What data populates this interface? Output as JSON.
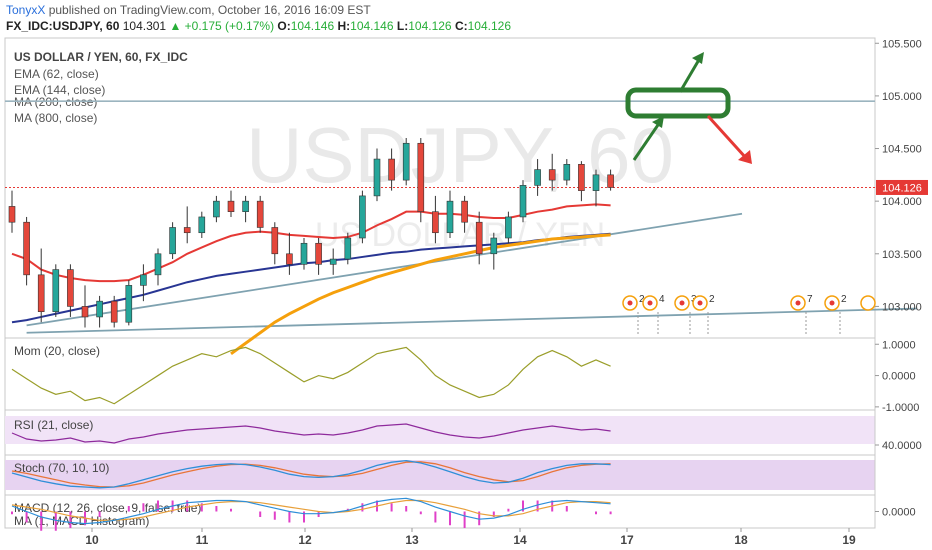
{
  "header": {
    "author": "TonyxX",
    "published": " published on TradingView.com, October 16, 2016 16:09 EST",
    "symbol": "FX_IDC:USDJPY, 60",
    "last": "104.301",
    "change": "▲ +0.175 (+0.17%)",
    "o_label": "O:",
    "o_value": "104.146",
    "h_label": "H:",
    "h_value": "104.146",
    "l_label": "L:",
    "l_value": "104.126",
    "c_label": "C:",
    "c_value": "104.126"
  },
  "main_pane": {
    "title": "US DOLLAR / YEN, 60, FX_IDC",
    "studies": [
      "EMA (62, close)",
      "EMA (144, close)",
      "MA (200, close)",
      "MA (800, close)"
    ],
    "watermark_symbol": "USDJPY, 60",
    "watermark_name": "US DOLLAR / YEN",
    "last_price_label": "104.126"
  },
  "indicators": {
    "mom_title": "Mom (20, close)",
    "rsi_title": "RSI (21, close)",
    "stoch_title": "Stoch (70, 10, 10)",
    "macd_title": "MACD (12, 26, close, 9, false, true)",
    "ma_title": "MA (1, MACD Histogram)"
  },
  "events": [
    "2",
    "4",
    "3",
    "2",
    "7",
    "2"
  ],
  "colors": {
    "candle_up": "#26a69a",
    "candle_down": "#e4473b",
    "ema62": "#e53935",
    "ema144": "#283593",
    "ma200": "#f5a00c",
    "trendline": "#7fa2b0",
    "resistance": "#9bb4bf",
    "arrow_up": "#2e7d32",
    "arrow_down": "#e53935",
    "mom": "#9a9e2a",
    "rsi": "#8e2a9c",
    "stoch_k": "#2f8fd8",
    "stoch_d": "#e8753a",
    "macd_line": "#2f8fd8",
    "signal_line": "#e8a03a",
    "histogram": "#e040c8"
  },
  "chart_data": {
    "type": "line",
    "x_tick_labels": [
      "10",
      "11",
      "12",
      "13",
      "14",
      "17",
      "18",
      "19"
    ],
    "price_axis": {
      "ticks": [
        "105.500",
        "105.000",
        "104.500",
        "104.000",
        "103.500",
        "103.000"
      ],
      "range": [
        102.7,
        105.55
      ]
    },
    "candles": [
      {
        "o": 103.95,
        "h": 104.1,
        "l": 103.7,
        "c": 103.8
      },
      {
        "o": 103.8,
        "h": 103.85,
        "l": 103.2,
        "c": 103.3
      },
      {
        "o": 103.3,
        "h": 103.55,
        "l": 102.85,
        "c": 102.95
      },
      {
        "o": 102.95,
        "h": 103.4,
        "l": 102.9,
        "c": 103.35
      },
      {
        "o": 103.35,
        "h": 103.4,
        "l": 102.9,
        "c": 103.0
      },
      {
        "o": 103.0,
        "h": 103.2,
        "l": 102.8,
        "c": 102.9
      },
      {
        "o": 102.9,
        "h": 103.1,
        "l": 102.8,
        "c": 103.05
      },
      {
        "o": 103.05,
        "h": 103.1,
        "l": 102.8,
        "c": 102.85
      },
      {
        "o": 102.85,
        "h": 103.25,
        "l": 102.82,
        "c": 103.2
      },
      {
        "o": 103.2,
        "h": 103.4,
        "l": 103.05,
        "c": 103.3
      },
      {
        "o": 103.3,
        "h": 103.55,
        "l": 103.2,
        "c": 103.5
      },
      {
        "o": 103.5,
        "h": 103.8,
        "l": 103.45,
        "c": 103.75
      },
      {
        "o": 103.75,
        "h": 103.95,
        "l": 103.6,
        "c": 103.7
      },
      {
        "o": 103.7,
        "h": 103.9,
        "l": 103.65,
        "c": 103.85
      },
      {
        "o": 103.85,
        "h": 104.05,
        "l": 103.8,
        "c": 104.0
      },
      {
        "o": 104.0,
        "h": 104.1,
        "l": 103.85,
        "c": 103.9
      },
      {
        "o": 103.9,
        "h": 104.05,
        "l": 103.8,
        "c": 104.0
      },
      {
        "o": 104.0,
        "h": 104.05,
        "l": 103.7,
        "c": 103.75
      },
      {
        "o": 103.75,
        "h": 103.8,
        "l": 103.4,
        "c": 103.5
      },
      {
        "o": 103.5,
        "h": 103.7,
        "l": 103.3,
        "c": 103.4
      },
      {
        "o": 103.4,
        "h": 103.65,
        "l": 103.35,
        "c": 103.6
      },
      {
        "o": 103.6,
        "h": 103.65,
        "l": 103.3,
        "c": 103.4
      },
      {
        "o": 103.4,
        "h": 103.55,
        "l": 103.3,
        "c": 103.45
      },
      {
        "o": 103.45,
        "h": 103.7,
        "l": 103.4,
        "c": 103.65
      },
      {
        "o": 103.65,
        "h": 104.1,
        "l": 103.6,
        "c": 104.05
      },
      {
        "o": 104.05,
        "h": 104.5,
        "l": 104.0,
        "c": 104.4
      },
      {
        "o": 104.4,
        "h": 104.5,
        "l": 104.1,
        "c": 104.2
      },
      {
        "o": 104.2,
        "h": 104.6,
        "l": 104.15,
        "c": 104.55
      },
      {
        "o": 104.55,
        "h": 104.6,
        "l": 103.8,
        "c": 103.9
      },
      {
        "o": 103.9,
        "h": 104.05,
        "l": 103.6,
        "c": 103.7
      },
      {
        "o": 103.7,
        "h": 104.1,
        "l": 103.65,
        "c": 104.0
      },
      {
        "o": 104.0,
        "h": 104.05,
        "l": 103.7,
        "c": 103.8
      },
      {
        "o": 103.8,
        "h": 103.9,
        "l": 103.4,
        "c": 103.5
      },
      {
        "o": 103.5,
        "h": 103.7,
        "l": 103.35,
        "c": 103.65
      },
      {
        "o": 103.65,
        "h": 103.9,
        "l": 103.6,
        "c": 103.85
      },
      {
        "o": 103.85,
        "h": 104.2,
        "l": 103.8,
        "c": 104.15
      },
      {
        "o": 104.15,
        "h": 104.4,
        "l": 104.05,
        "c": 104.3
      },
      {
        "o": 104.3,
        "h": 104.45,
        "l": 104.1,
        "c": 104.2
      },
      {
        "o": 104.2,
        "h": 104.4,
        "l": 104.15,
        "c": 104.35
      },
      {
        "o": 104.35,
        "h": 104.38,
        "l": 104.0,
        "c": 104.1
      },
      {
        "o": 104.1,
        "h": 104.3,
        "l": 103.95,
        "c": 104.25
      },
      {
        "o": 104.25,
        "h": 104.3,
        "l": 104.1,
        "c": 104.13
      }
    ],
    "ema62": [
      103.5,
      103.45,
      103.35,
      103.3,
      103.27,
      103.25,
      103.24,
      103.24,
      103.25,
      103.3,
      103.36,
      103.42,
      103.5,
      103.56,
      103.62,
      103.67,
      103.7,
      103.71,
      103.7,
      103.68,
      103.67,
      103.66,
      103.65,
      103.66,
      103.7,
      103.77,
      103.83,
      103.9,
      103.9,
      103.88,
      103.88,
      103.87,
      103.85,
      103.84,
      103.84,
      103.87,
      103.9,
      103.92,
      103.95,
      103.96,
      103.97,
      103.96
    ],
    "ema144": [
      102.85,
      102.87,
      102.9,
      102.93,
      102.96,
      102.99,
      103.02,
      103.05,
      103.08,
      103.11,
      103.15,
      103.19,
      103.23,
      103.26,
      103.29,
      103.31,
      103.33,
      103.35,
      103.37,
      103.39,
      103.41,
      103.42,
      103.44,
      103.45,
      103.47,
      103.49,
      103.51,
      103.52,
      103.54,
      103.55,
      103.56,
      103.57,
      103.58,
      103.59,
      103.6,
      103.61,
      103.63,
      103.64,
      103.66,
      103.67,
      103.68,
      103.69
    ],
    "ma200_x": [
      15,
      41
    ],
    "ma200": [
      102.55,
      102.65,
      102.75,
      102.85,
      102.93,
      103.0,
      103.07,
      103.13,
      103.18,
      103.23,
      103.28,
      103.32,
      103.36,
      103.4,
      103.44,
      103.47,
      103.5,
      103.53,
      103.56,
      103.58,
      103.6,
      103.62,
      103.64,
      103.65,
      103.66,
      103.67,
      103.68
    ],
    "trendlines": [
      {
        "x": [
          1,
          50
        ],
        "y": [
          102.82,
          103.88
        ]
      },
      {
        "x": [
          1,
          62
        ],
        "y": [
          102.75,
          102.98
        ]
      }
    ],
    "resistance_level": 104.95,
    "current_price": 104.13,
    "mom": [
      0.2,
      -0.1,
      -0.4,
      -0.6,
      -0.5,
      -0.8,
      -0.7,
      -0.9,
      -0.6,
      -0.3,
      0.0,
      0.3,
      0.5,
      0.7,
      0.6,
      0.8,
      0.9,
      0.7,
      0.4,
      0.1,
      -0.2,
      0.0,
      -0.1,
      0.1,
      0.4,
      0.7,
      0.8,
      0.9,
      0.5,
      0.0,
      -0.3,
      -0.5,
      -0.7,
      -0.6,
      -0.3,
      0.2,
      0.6,
      0.8,
      0.6,
      0.3,
      0.5,
      0.3
    ],
    "mom_axis": {
      "ticks": [
        "1.0000",
        "0.0000",
        "-1.0000"
      ],
      "range": [
        -1.1,
        1.2
      ]
    },
    "rsi": [
      52,
      46,
      44,
      45,
      47,
      43,
      44,
      42,
      46,
      48,
      51,
      53,
      55,
      56,
      57,
      58,
      59,
      57,
      54,
      52,
      50,
      51,
      50,
      52,
      55,
      59,
      60,
      61,
      57,
      53,
      50,
      48,
      47,
      49,
      52,
      55,
      57,
      59,
      57,
      55,
      56,
      54
    ],
    "rsi_axis": {
      "ticks": [
        "40.0000"
      ],
      "range": [
        30,
        75
      ]
    },
    "stoch_k": [
      55,
      45,
      35,
      28,
      22,
      20,
      18,
      20,
      28,
      38,
      48,
      58,
      66,
      72,
      76,
      78,
      76,
      70,
      62,
      52,
      46,
      44,
      46,
      52,
      62,
      74,
      82,
      86,
      80,
      70,
      58,
      46,
      36,
      30,
      32,
      42,
      56,
      66,
      74,
      78,
      78,
      76
    ],
    "stoch_d": [
      60,
      54,
      46,
      38,
      30,
      25,
      21,
      20,
      23,
      30,
      40,
      50,
      58,
      66,
      72,
      76,
      77,
      74,
      68,
      60,
      52,
      48,
      46,
      48,
      54,
      64,
      74,
      82,
      83,
      78,
      68,
      56,
      46,
      38,
      33,
      36,
      46,
      58,
      68,
      74,
      77,
      78
    ],
    "macd": [
      0.05,
      0.0,
      -0.05,
      -0.08,
      -0.1,
      -0.11,
      -0.1,
      -0.08,
      -0.05,
      -0.02,
      0.02,
      0.05,
      0.08,
      0.09,
      0.1,
      0.1,
      0.09,
      0.06,
      0.03,
      0.0,
      -0.02,
      -0.02,
      -0.01,
      0.01,
      0.05,
      0.09,
      0.11,
      0.12,
      0.09,
      0.04,
      0.0,
      -0.04,
      -0.07,
      -0.06,
      -0.03,
      0.02,
      0.06,
      0.09,
      0.1,
      0.09,
      0.08,
      0.07
    ],
    "signal": [
      0.06,
      0.04,
      0.02,
      -0.01,
      -0.04,
      -0.06,
      -0.08,
      -0.08,
      -0.07,
      -0.05,
      -0.02,
      0.01,
      0.04,
      0.06,
      0.08,
      0.09,
      0.09,
      0.08,
      0.06,
      0.04,
      0.02,
      0.0,
      -0.01,
      0.0,
      0.02,
      0.05,
      0.08,
      0.1,
      0.1,
      0.08,
      0.05,
      0.02,
      -0.02,
      -0.04,
      -0.04,
      -0.02,
      0.02,
      0.05,
      0.08,
      0.09,
      0.09,
      0.08
    ],
    "macd_axis": {
      "ticks": [
        "0.0000"
      ],
      "range": [
        -0.15,
        0.15
      ]
    }
  }
}
